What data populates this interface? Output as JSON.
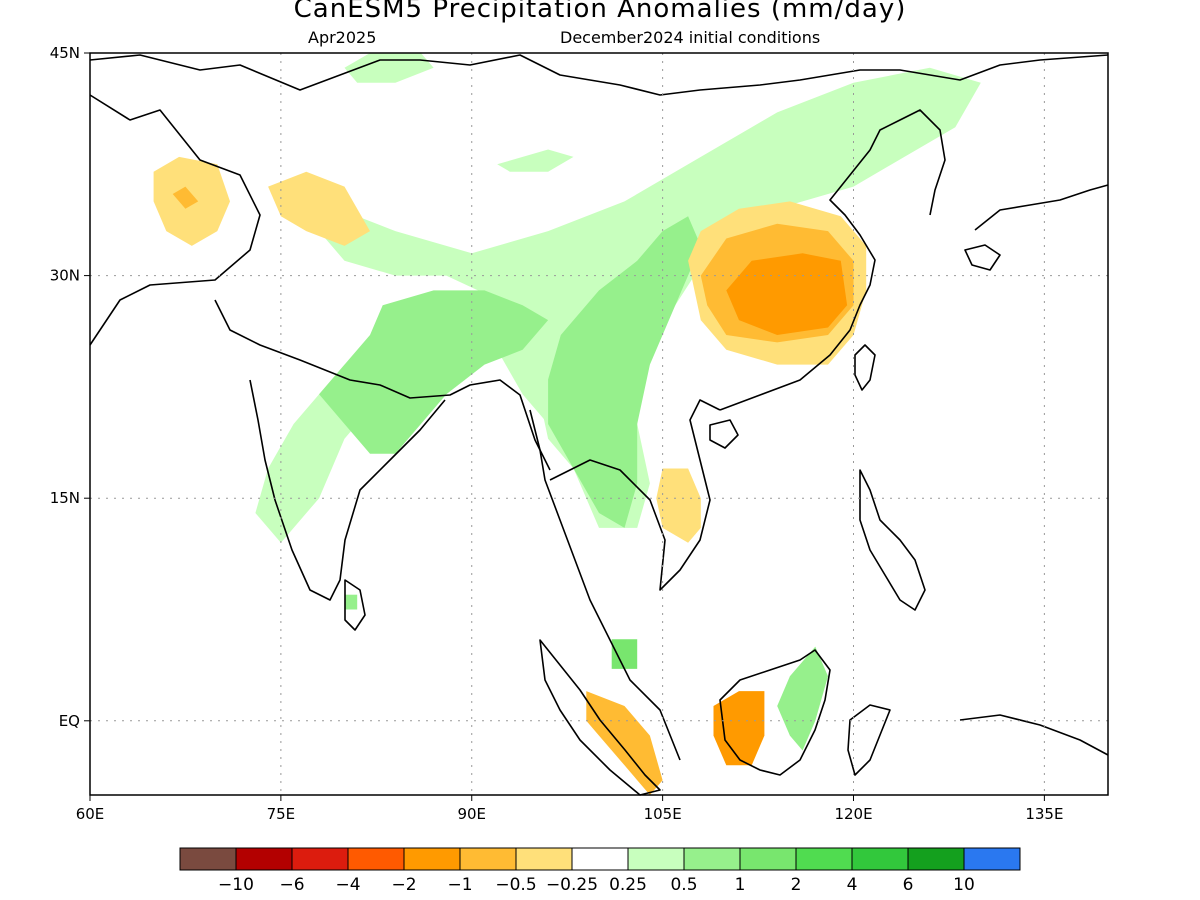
{
  "header": {
    "title": "CanESM5 Precipitation Anomalies (mm/day)",
    "valid_month": "Apr2025",
    "init_text": "December2024 initial conditions"
  },
  "map": {
    "lon_range": [
      60,
      140
    ],
    "lat_range": [
      -5,
      45
    ],
    "x_ticks": [
      {
        "value": 60,
        "label": "60E"
      },
      {
        "value": 75,
        "label": "75E"
      },
      {
        "value": 90,
        "label": "90E"
      },
      {
        "value": 105,
        "label": "105E"
      },
      {
        "value": 120,
        "label": "120E"
      },
      {
        "value": 135,
        "label": "135E"
      }
    ],
    "y_ticks": [
      {
        "value": 45,
        "label": "45N"
      },
      {
        "value": 30,
        "label": "30N"
      },
      {
        "value": 15,
        "label": "15N"
      },
      {
        "value": 0,
        "label": "EQ"
      }
    ],
    "grid": "dotted"
  },
  "colorbar": {
    "colors": [
      "#7a4a3f",
      "#b30000",
      "#dc1c0e",
      "#ff5a00",
      "#ff9a00",
      "#ffbb33",
      "#ffe07a",
      "#ffffff",
      "#c8ffbe",
      "#96f08c",
      "#78e66e",
      "#50dc50",
      "#32c83c",
      "#14a01e",
      "#2a78f0"
    ],
    "labels": [
      "−10",
      "−6",
      "−4",
      "−2",
      "−1",
      "−0.5",
      "−0.25",
      "0.25",
      "0.5",
      "1",
      "2",
      "4",
      "6",
      "10"
    ]
  },
  "anomaly_regions": [
    {
      "name": "tibet-green",
      "color": "#c8ffbe",
      "points": [
        [
          78,
          35
        ],
        [
          84,
          33
        ],
        [
          90,
          31.5
        ],
        [
          96,
          33
        ],
        [
          102,
          35
        ],
        [
          108,
          38
        ],
        [
          114,
          41
        ],
        [
          120,
          43
        ],
        [
          126,
          44
        ],
        [
          130,
          43
        ],
        [
          128,
          40
        ],
        [
          124,
          38
        ],
        [
          120,
          36
        ],
        [
          116,
          35
        ],
        [
          112,
          34
        ],
        [
          108,
          33
        ],
        [
          104,
          30
        ],
        [
          100,
          26
        ],
        [
          98,
          22
        ],
        [
          96,
          20
        ],
        [
          94,
          22
        ],
        [
          92,
          25
        ],
        [
          88,
          26
        ],
        [
          84,
          25
        ],
        [
          80,
          24
        ],
        [
          76,
          20
        ],
        [
          74,
          17
        ],
        [
          73,
          14
        ],
        [
          75,
          12
        ],
        [
          78,
          15
        ],
        [
          80,
          19
        ],
        [
          84,
          23
        ],
        [
          88,
          26
        ],
        [
          92,
          28
        ],
        [
          96,
          29
        ],
        [
          96,
          27
        ],
        [
          93,
          28
        ],
        [
          88,
          30
        ],
        [
          84,
          30
        ],
        [
          80,
          31
        ],
        [
          78,
          33
        ]
      ]
    },
    {
      "name": "north-green-blob",
      "color": "#c8ffbe",
      "points": [
        [
          80,
          44
        ],
        [
          82,
          45
        ],
        [
          86,
          45
        ],
        [
          87,
          44
        ],
        [
          84,
          43
        ],
        [
          81,
          43
        ]
      ]
    },
    {
      "name": "tarim-green-blob",
      "color": "#c8ffbe",
      "points": [
        [
          92,
          37.5
        ],
        [
          96,
          38.5
        ],
        [
          98,
          38
        ],
        [
          96,
          37
        ],
        [
          93,
          37
        ]
      ]
    },
    {
      "name": "se-asia-green",
      "color": "#c8ffbe",
      "points": [
        [
          96,
          30
        ],
        [
          100,
          32
        ],
        [
          104,
          34
        ],
        [
          108,
          35
        ],
        [
          109,
          32
        ],
        [
          106,
          28
        ],
        [
          103,
          24
        ],
        [
          103,
          20
        ],
        [
          104,
          16
        ],
        [
          103,
          13
        ],
        [
          100,
          13
        ],
        [
          98,
          17
        ],
        [
          96,
          19
        ],
        [
          95,
          23
        ],
        [
          94,
          27
        ]
      ]
    },
    {
      "name": "india-green",
      "color": "#96f08c",
      "points": [
        [
          83,
          28
        ],
        [
          87,
          29
        ],
        [
          91,
          29
        ],
        [
          94,
          28
        ],
        [
          96,
          27
        ],
        [
          94,
          25
        ],
        [
          91,
          24
        ],
        [
          88,
          22
        ],
        [
          86,
          20
        ],
        [
          84,
          18
        ],
        [
          82,
          18
        ],
        [
          80,
          20
        ],
        [
          78,
          22
        ],
        [
          80,
          24
        ],
        [
          82,
          26
        ]
      ]
    },
    {
      "name": "burma-green",
      "color": "#96f08c",
      "points": [
        [
          97,
          26
        ],
        [
          100,
          29
        ],
        [
          103,
          31
        ],
        [
          105,
          33
        ],
        [
          107,
          34
        ],
        [
          108,
          32
        ],
        [
          106,
          28
        ],
        [
          104,
          24
        ],
        [
          103,
          20
        ],
        [
          103,
          16
        ],
        [
          102,
          13
        ],
        [
          100,
          14
        ],
        [
          98,
          17
        ],
        [
          96,
          20
        ],
        [
          96,
          23
        ]
      ]
    },
    {
      "name": "borneo-green",
      "color": "#96f08c",
      "points": [
        [
          115,
          3
        ],
        [
          117,
          5
        ],
        [
          118,
          3
        ],
        [
          117,
          0
        ],
        [
          116,
          -2
        ],
        [
          115,
          -1
        ],
        [
          114,
          1
        ]
      ]
    },
    {
      "name": "china-orange-outer",
      "color": "#ffe07a",
      "points": [
        [
          107,
          31
        ],
        [
          108,
          33
        ],
        [
          111,
          34.5
        ],
        [
          115,
          35
        ],
        [
          119,
          34
        ],
        [
          121,
          32
        ],
        [
          121,
          29
        ],
        [
          120,
          26
        ],
        [
          118,
          24
        ],
        [
          114,
          24
        ],
        [
          110,
          25
        ],
        [
          108,
          27
        ]
      ]
    },
    {
      "name": "china-orange-mid",
      "color": "#ffbb33",
      "points": [
        [
          108,
          30
        ],
        [
          110,
          32.5
        ],
        [
          114,
          33.5
        ],
        [
          118,
          33
        ],
        [
          120,
          31
        ],
        [
          120,
          28
        ],
        [
          118,
          26
        ],
        [
          114,
          25.5
        ],
        [
          110,
          26
        ],
        [
          108.5,
          28
        ]
      ]
    },
    {
      "name": "china-orange-core",
      "color": "#ff9a00",
      "points": [
        [
          110,
          29
        ],
        [
          112,
          31
        ],
        [
          116,
          31.5
        ],
        [
          119,
          31
        ],
        [
          119.5,
          28
        ],
        [
          118,
          26.5
        ],
        [
          114,
          26
        ],
        [
          111,
          27
        ]
      ]
    },
    {
      "name": "afghan-yellow",
      "color": "#ffe07a",
      "points": [
        [
          65,
          37
        ],
        [
          67,
          38
        ],
        [
          70,
          37.5
        ],
        [
          71,
          35
        ],
        [
          70,
          33
        ],
        [
          68,
          32
        ],
        [
          66,
          33
        ],
        [
          65,
          35
        ]
      ]
    },
    {
      "name": "afghan-orange",
      "color": "#ffbb33",
      "points": [
        [
          66.5,
          35.5
        ],
        [
          67.5,
          36
        ],
        [
          68.5,
          35
        ],
        [
          67.5,
          34.5
        ]
      ]
    },
    {
      "name": "kashmir-yellow",
      "color": "#ffe07a",
      "points": [
        [
          74,
          36
        ],
        [
          77,
          37
        ],
        [
          80,
          36
        ],
        [
          82,
          33
        ],
        [
          80,
          32
        ],
        [
          77,
          33
        ],
        [
          75,
          34
        ]
      ]
    },
    {
      "name": "laos-yellow",
      "color": "#ffe07a",
      "points": [
        [
          105,
          17
        ],
        [
          107,
          17
        ],
        [
          108,
          15
        ],
        [
          108,
          13
        ],
        [
          107,
          12
        ],
        [
          105,
          13
        ],
        [
          104.5,
          15
        ]
      ]
    },
    {
      "name": "sumatra-orange",
      "color": "#ffbb33",
      "points": [
        [
          99,
          2
        ],
        [
          102,
          1
        ],
        [
          104,
          -1
        ],
        [
          105,
          -4
        ],
        [
          104,
          -5
        ],
        [
          102,
          -3
        ],
        [
          100,
          -1
        ],
        [
          99,
          0
        ]
      ]
    },
    {
      "name": "borneo-orange",
      "color": "#ff9a00",
      "points": [
        [
          109,
          1
        ],
        [
          111,
          2
        ],
        [
          113,
          2
        ],
        [
          113,
          -1
        ],
        [
          112,
          -3
        ],
        [
          110,
          -3
        ],
        [
          109,
          -1
        ]
      ]
    },
    {
      "name": "sri-lanka-green",
      "color": "#96f08c",
      "points": [
        [
          80,
          8.5
        ],
        [
          81,
          8.5
        ],
        [
          81,
          7.5
        ],
        [
          80,
          7.5
        ]
      ]
    },
    {
      "name": "malaya-green",
      "color": "#78e66e",
      "points": [
        [
          101,
          5.5
        ],
        [
          103,
          5.5
        ],
        [
          103,
          3.5
        ],
        [
          101,
          3.5
        ]
      ]
    }
  ]
}
